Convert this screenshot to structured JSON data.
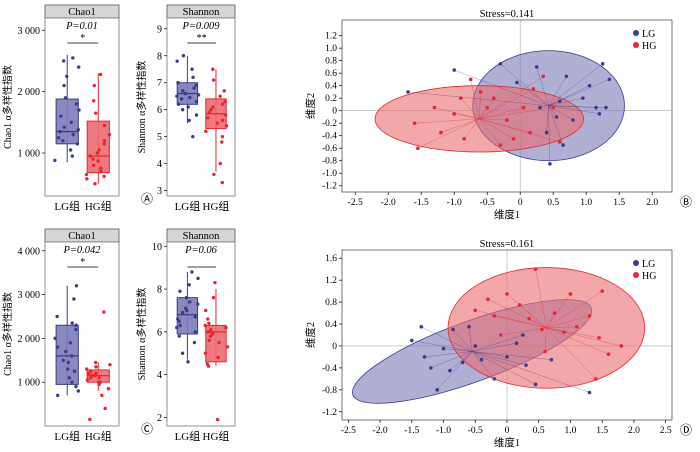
{
  "colors": {
    "lg": "#3b3c8c",
    "hg": "#e8262e",
    "lg_fill": "#7c7cb8",
    "hg_fill": "#ea6c70",
    "header_fill": "#d6d6d6"
  },
  "chart_data": [
    {
      "type": "box",
      "panel": "A",
      "title": "Chao1",
      "pvalue": "P=0.01",
      "signif": "*",
      "ylabel": "Chao1 α多样性指数",
      "ylim": [
        300,
        3200
      ],
      "yticks": [
        1000,
        2000,
        3000
      ],
      "ytick_labels": [
        "1 000",
        "2 000",
        "3 000"
      ],
      "categories": [
        "LG组",
        "HG组"
      ],
      "boxes": [
        {
          "name": "LG",
          "q1": 1150,
          "median": 1350,
          "q3": 1880,
          "whisker_low": 850,
          "whisker_high": 2600
        },
        {
          "name": "HG",
          "q1": 680,
          "median": 950,
          "q3": 1520,
          "whisker_low": 500,
          "whisker_high": 2300
        }
      ],
      "points": [
        [
          1200,
          1350,
          1380,
          1420,
          1500,
          1600,
          1700,
          1900,
          2100,
          2250,
          2400,
          2550,
          2500,
          1050,
          950,
          880,
          1150,
          1300,
          1800,
          1250
        ],
        [
          500,
          580,
          620,
          700,
          750,
          800,
          870,
          900,
          950,
          1000,
          1050,
          1150,
          1300,
          1450,
          1650,
          1850,
          2100,
          2280,
          650,
          1200
        ]
      ],
      "panel_label": "Ⓐ"
    },
    {
      "type": "box",
      "panel": "A",
      "title": "Shannon",
      "pvalue": "P=0.009",
      "signif": "**",
      "ylabel": "Shannon α多样性指数",
      "ylim": [
        2.8,
        9.4
      ],
      "yticks": [
        3,
        4,
        5,
        6,
        7,
        8,
        9
      ],
      "ytick_labels": [
        "3",
        "4",
        "5",
        "6",
        "7",
        "8",
        "9"
      ],
      "categories": [
        "LG组",
        "HG组"
      ],
      "boxes": [
        {
          "name": "LG",
          "q1": 6.2,
          "median": 6.6,
          "q3": 7.0,
          "whisker_low": 5.5,
          "whisker_high": 8.0
        },
        {
          "name": "HG",
          "q1": 5.3,
          "median": 5.85,
          "q3": 6.4,
          "whisker_low": 3.7,
          "whisker_high": 7.5
        }
      ],
      "points": [
        [
          5.0,
          5.6,
          5.8,
          6.1,
          6.2,
          6.3,
          6.4,
          6.5,
          6.6,
          6.7,
          6.8,
          6.9,
          7.0,
          7.2,
          7.5,
          7.8,
          8.0,
          6.0,
          6.45,
          6.55
        ],
        [
          3.3,
          3.6,
          4.0,
          4.8,
          5.2,
          5.4,
          5.6,
          5.8,
          5.9,
          6.0,
          6.1,
          6.3,
          6.5,
          6.7,
          7.1,
          7.5,
          5.0,
          5.7,
          6.2,
          5.5
        ]
      ],
      "panel_label": ""
    },
    {
      "type": "box",
      "panel": "C",
      "title": "Chao1",
      "pvalue": "P=0.042",
      "signif": "*",
      "ylabel": "Chao1 α多样性指数",
      "ylim": [
        0,
        4200
      ],
      "yticks": [
        1000,
        2000,
        3000,
        4000
      ],
      "ytick_labels": [
        "1 000",
        "2 000",
        "3 000",
        "4 000"
      ],
      "categories": [
        "LG组",
        "HG组"
      ],
      "boxes": [
        {
          "name": "LG",
          "q1": 950,
          "median": 1600,
          "q3": 2300,
          "whisker_low": 700,
          "whisker_high": 3200
        },
        {
          "name": "HG",
          "q1": 1000,
          "median": 1150,
          "q3": 1280,
          "whisker_low": 800,
          "whisker_high": 1450
        }
      ],
      "points": [
        [
          700,
          800,
          900,
          1000,
          1100,
          1300,
          1450,
          1600,
          1700,
          1800,
          1900,
          2000,
          2200,
          2300,
          2350,
          2500,
          2900,
          3200,
          1500,
          1250
        ],
        [
          150,
          400,
          700,
          850,
          950,
          1000,
          1050,
          1100,
          1150,
          1200,
          1250,
          1300,
          1350,
          1400,
          1450,
          1200,
          1100,
          2600,
          1000,
          1150
        ]
      ],
      "panel_label": "Ⓒ"
    },
    {
      "type": "box",
      "panel": "C",
      "title": "Shannon",
      "pvalue": "P=0.06",
      "signif": "",
      "ylabel": "Shannon α多样性指数",
      "ylim": [
        1.6,
        10.2
      ],
      "yticks": [
        2,
        4,
        6,
        8,
        10
      ],
      "ytick_labels": [
        "2",
        "4",
        "6",
        "8",
        "10"
      ],
      "categories": [
        "LG组",
        "HG组"
      ],
      "boxes": [
        {
          "name": "LG",
          "q1": 5.9,
          "median": 6.8,
          "q3": 7.6,
          "whisker_low": 4.7,
          "whisker_high": 8.8
        },
        {
          "name": "HG",
          "q1": 4.6,
          "median": 6.0,
          "q3": 6.3,
          "whisker_low": 4.4,
          "whisker_high": 8.0
        }
      ],
      "points": [
        [
          4.6,
          5.0,
          5.5,
          6.0,
          6.2,
          6.5,
          6.7,
          6.9,
          7.0,
          7.3,
          7.6,
          7.9,
          8.2,
          8.5,
          8.8,
          5.8,
          6.3,
          7.1,
          6.6,
          7.4
        ],
        [
          1.9,
          4.5,
          4.8,
          5.0,
          5.3,
          5.6,
          5.9,
          6.0,
          6.1,
          6.2,
          6.3,
          6.4,
          6.6,
          7.0,
          7.6,
          8.3,
          5.5,
          6.0,
          5.8,
          4.4
        ]
      ],
      "panel_label": ""
    },
    {
      "type": "scatter",
      "panel": "B",
      "title": "Stress=0.141",
      "xlabel": "维度1",
      "ylabel": "维度2",
      "xlim": [
        -2.7,
        2.3
      ],
      "ylim": [
        -1.3,
        1.45
      ],
      "xticks": [
        -2.5,
        -2.0,
        -1.5,
        -1.0,
        -0.5,
        0,
        0.5,
        1.0,
        1.5,
        2.0
      ],
      "xtick_labels": [
        "-2.5",
        "-2.0",
        "-1.5",
        "-1.0",
        "-0.5",
        "0",
        "0.5",
        "1.0",
        "1.5",
        "2.0"
      ],
      "yticks": [
        -1.2,
        -1.0,
        -0.8,
        -0.6,
        -0.4,
        -0.2,
        0,
        0.2,
        0.4,
        0.6,
        0.8,
        1.0,
        1.2
      ],
      "ytick_labels": [
        "-1.2",
        "-1.0",
        "-0.8",
        "-0.6",
        "-0.4",
        "-0.2",
        "0",
        "0.2",
        "0.4",
        "0.6",
        "0.8",
        "1.0",
        "1.2"
      ],
      "legend": [
        "LG",
        "HG"
      ],
      "legend_position": "top-right",
      "centroids": [
        {
          "name": "LG",
          "x": 0.43,
          "y": 0.08
        },
        {
          "name": "HG",
          "x": -0.62,
          "y": -0.13
        }
      ],
      "ellipses": [
        {
          "name": "LG",
          "cx": 0.43,
          "cy": 0.08,
          "rx": 1.15,
          "ry": 0.88,
          "angle_deg": 0
        },
        {
          "name": "HG",
          "cx": -0.62,
          "cy": -0.13,
          "rx": 1.58,
          "ry": 0.53,
          "angle_deg": 0
        }
      ],
      "series": [
        {
          "name": "LG",
          "points": [
            [
              -1.7,
              0.3
            ],
            [
              -1.0,
              0.65
            ],
            [
              -0.3,
              0.75
            ],
            [
              0.25,
              0.7
            ],
            [
              1.25,
              0.75
            ],
            [
              1.35,
              0.5
            ],
            [
              1.05,
              0.4
            ],
            [
              0.95,
              0.2
            ],
            [
              0.6,
              0.15
            ],
            [
              0.3,
              0.05
            ],
            [
              0.55,
              -0.1
            ],
            [
              1.2,
              -0.05
            ],
            [
              0.8,
              -0.15
            ],
            [
              0.4,
              -0.35
            ],
            [
              0.65,
              -0.55
            ],
            [
              0.45,
              -0.85
            ],
            [
              1.15,
              0.05
            ],
            [
              -0.05,
              0.45
            ],
            [
              0.7,
              0.55
            ],
            [
              1.3,
              0.05
            ]
          ]
        },
        {
          "name": "HG",
          "points": [
            [
              -1.2,
              -0.35
            ],
            [
              -1.55,
              -0.6
            ],
            [
              -1.0,
              -0.05
            ],
            [
              -0.85,
              -0.45
            ],
            [
              -0.6,
              0.3
            ],
            [
              -0.5,
              0.05
            ],
            [
              -0.2,
              -0.15
            ],
            [
              0.05,
              0.05
            ],
            [
              0.15,
              -0.35
            ],
            [
              -0.3,
              -0.55
            ],
            [
              -0.75,
              0.5
            ],
            [
              0.5,
              0.05
            ],
            [
              0.2,
              0.35
            ],
            [
              -0.4,
              0.2
            ],
            [
              -1.3,
              0.05
            ],
            [
              -0.1,
              -0.45
            ],
            [
              0.6,
              -0.5
            ],
            [
              -1.6,
              -0.2
            ],
            [
              0.35,
              0.55
            ],
            [
              -0.9,
              0.2
            ]
          ]
        }
      ],
      "panel_label": "Ⓑ"
    },
    {
      "type": "scatter",
      "panel": "D",
      "title": "Stress=0.161",
      "xlabel": "维度1",
      "ylabel": "维度2",
      "xlim": [
        -2.6,
        2.6
      ],
      "ylim": [
        -1.35,
        1.75
      ],
      "xticks": [
        -2.5,
        -2.0,
        -1.5,
        -1.0,
        -0.5,
        0,
        0.5,
        1.0,
        1.5,
        2.0,
        2.5
      ],
      "xtick_labels": [
        "-2.5",
        "-2.0",
        "-1.5",
        "-1.0",
        "-0.5",
        "0",
        "0.5",
        "1.0",
        "1.5",
        "2.0",
        "2.5"
      ],
      "yticks": [
        -1.2,
        -0.8,
        -0.4,
        0,
        0.4,
        0.8,
        1.2,
        1.6
      ],
      "ytick_labels": [
        "-1.2",
        "-0.8",
        "-0.4",
        "0",
        "0.4",
        "0.8",
        "1.2",
        "1.6"
      ],
      "legend": [
        "LG",
        "HG"
      ],
      "legend_position": "top-right",
      "centroids": [
        {
          "name": "LG",
          "x": -0.55,
          "y": -0.1
        },
        {
          "name": "HG",
          "x": 0.62,
          "y": 0.33
        }
      ],
      "ellipses": [
        {
          "name": "LG",
          "cx": -0.55,
          "cy": -0.1,
          "rx": 2.0,
          "ry": 0.55,
          "angle_deg": 20
        },
        {
          "name": "HG",
          "cx": 0.62,
          "cy": 0.33,
          "rx": 1.55,
          "ry": 1.1,
          "angle_deg": 0
        }
      ],
      "series": [
        {
          "name": "LG",
          "points": [
            [
              -1.35,
              0.35
            ],
            [
              -1.5,
              0.1
            ],
            [
              -1.3,
              -0.2
            ],
            [
              -1.2,
              -0.4
            ],
            [
              -1.0,
              -0.05
            ],
            [
              -0.85,
              0.3
            ],
            [
              -0.7,
              -0.3
            ],
            [
              -0.5,
              0.0
            ],
            [
              -0.4,
              -0.25
            ],
            [
              -0.2,
              -0.6
            ],
            [
              0.0,
              -0.2
            ],
            [
              0.15,
              0.05
            ],
            [
              0.3,
              -0.35
            ],
            [
              0.45,
              -0.7
            ],
            [
              0.7,
              -0.25
            ],
            [
              1.3,
              -0.85
            ],
            [
              -1.1,
              -0.8
            ],
            [
              -0.6,
              0.35
            ],
            [
              -0.9,
              -0.45
            ],
            [
              0.25,
              0.2
            ]
          ]
        },
        {
          "name": "HG",
          "points": [
            [
              -0.3,
              0.85
            ],
            [
              -0.5,
              0.65
            ],
            [
              -0.2,
              0.55
            ],
            [
              0.0,
              0.95
            ],
            [
              0.2,
              0.75
            ],
            [
              0.35,
              0.5
            ],
            [
              0.55,
              0.3
            ],
            [
              0.75,
              0.6
            ],
            [
              0.9,
              0.25
            ],
            [
              1.0,
              0.95
            ],
            [
              1.1,
              0.35
            ],
            [
              1.3,
              0.55
            ],
            [
              1.45,
              0.15
            ],
            [
              1.6,
              -0.15
            ],
            [
              1.8,
              0.0
            ],
            [
              1.4,
              -0.6
            ],
            [
              0.6,
              -0.1
            ],
            [
              0.45,
              1.4
            ],
            [
              -0.1,
              0.2
            ],
            [
              1.5,
              1.0
            ]
          ]
        }
      ],
      "panel_label": "Ⓓ"
    }
  ]
}
